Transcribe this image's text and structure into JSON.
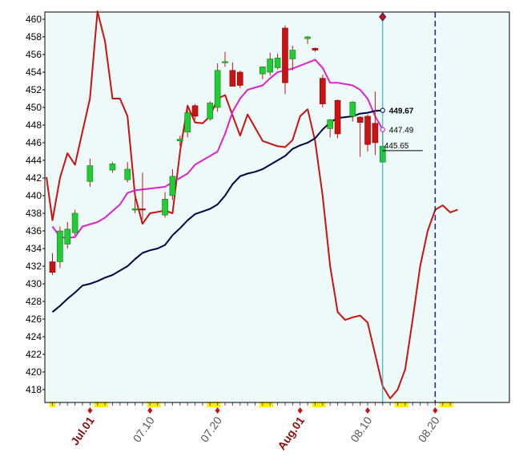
{
  "colors": {
    "plot_bg": "#eefafa",
    "up": "#22cc33",
    "down": "#cc1111",
    "oscillator": "#cc1111",
    "ma_short": "#dd22cc",
    "ma_long": "#000044",
    "cursor": "#1aa7b8",
    "future_line": "#1a2080",
    "marker_yellow": "#ffee00"
  },
  "chart_data": {
    "type": "candlestick",
    "ylim": [
      417,
      461
    ],
    "y_ticks": [
      418,
      420,
      422,
      424,
      426,
      428,
      430,
      432,
      434,
      436,
      438,
      440,
      442,
      444,
      446,
      448,
      450,
      452,
      454,
      456,
      458,
      460
    ],
    "x_ticks": [
      {
        "label": "Jul.01",
        "index": 5,
        "style": "month"
      },
      {
        "label": "07.10",
        "index": 13,
        "style": "day"
      },
      {
        "label": "07.20",
        "index": 22,
        "style": "day"
      },
      {
        "label": "Aug.01",
        "index": 33,
        "style": "month"
      },
      {
        "label": "08.10",
        "index": 42,
        "style": "day"
      },
      {
        "label": "08.20",
        "index": 51,
        "style": "day"
      }
    ],
    "n_slots": 53,
    "candles": [
      {
        "i": 0,
        "o": 432.5,
        "h": 433.5,
        "l": 431.0,
        "c": 431.3
      },
      {
        "i": 1,
        "o": 432.5,
        "h": 436.5,
        "l": 431.8,
        "c": 436.0
      },
      {
        "i": 2,
        "o": 434.5,
        "h": 437.0,
        "l": 434.0,
        "c": 436.2
      },
      {
        "i": 3,
        "o": 435.8,
        "h": 438.4,
        "l": 435.5,
        "c": 438.0
      },
      {
        "i": 5,
        "o": 441.6,
        "h": 444.2,
        "l": 441.0,
        "c": 443.4
      },
      {
        "i": 8,
        "o": 442.9,
        "h": 443.8,
        "l": 442.6,
        "c": 443.6
      },
      {
        "i": 10,
        "o": 441.8,
        "h": 443.8,
        "l": 441.5,
        "c": 443.0
      },
      {
        "i": 11,
        "o": 438.5,
        "h": 439.7,
        "l": 438.0,
        "c": 438.5
      },
      {
        "i": 12,
        "o": 438.5,
        "h": 442.6,
        "l": 437.3,
        "c": 438.4
      },
      {
        "i": 15,
        "o": 437.8,
        "h": 440.4,
        "l": 437.5,
        "c": 439.6
      },
      {
        "i": 16,
        "o": 440.0,
        "h": 443.0,
        "l": 439.5,
        "c": 442.2
      },
      {
        "i": 17,
        "o": 446.2,
        "h": 446.8,
        "l": 445.6,
        "c": 446.4
      },
      {
        "i": 18,
        "o": 447.2,
        "h": 450.2,
        "l": 446.6,
        "c": 449.4
      },
      {
        "i": 19,
        "o": 450.2,
        "h": 450.4,
        "l": 448.6,
        "c": 449.0
      },
      {
        "i": 21,
        "o": 448.7,
        "h": 450.7,
        "l": 448.5,
        "c": 450.5
      },
      {
        "i": 22,
        "o": 450.0,
        "h": 455.0,
        "l": 449.5,
        "c": 454.2
      },
      {
        "i": 23,
        "o": 455.1,
        "h": 456.3,
        "l": 454.6,
        "c": 455.2
      },
      {
        "i": 24,
        "o": 454.2,
        "h": 455.1,
        "l": 452.4,
        "c": 452.4
      },
      {
        "i": 25,
        "o": 454.0,
        "h": 454.2,
        "l": 452.2,
        "c": 452.5
      },
      {
        "i": 28,
        "o": 453.8,
        "h": 454.5,
        "l": 453.2,
        "c": 454.6
      },
      {
        "i": 29,
        "o": 454.0,
        "h": 456.2,
        "l": 453.6,
        "c": 455.5
      },
      {
        "i": 30,
        "o": 454.5,
        "h": 456.1,
        "l": 454.3,
        "c": 455.6
      },
      {
        "i": 31,
        "o": 459.0,
        "h": 459.3,
        "l": 451.5,
        "c": 452.8
      },
      {
        "i": 32,
        "o": 455.5,
        "h": 457.0,
        "l": 454.2,
        "c": 456.5
      },
      {
        "i": 34,
        "o": 457.8,
        "h": 458.1,
        "l": 457.2,
        "c": 458.0
      },
      {
        "i": 35,
        "o": 456.7,
        "h": 456.8,
        "l": 456.3,
        "c": 456.5
      },
      {
        "i": 36,
        "o": 453.3,
        "h": 453.7,
        "l": 450.0,
        "c": 450.4
      },
      {
        "i": 37,
        "o": 447.6,
        "h": 448.7,
        "l": 446.6,
        "c": 448.6
      },
      {
        "i": 38,
        "o": 450.8,
        "h": 450.9,
        "l": 446.5,
        "c": 447.0
      },
      {
        "i": 40,
        "o": 449.0,
        "h": 450.7,
        "l": 448.4,
        "c": 450.6
      },
      {
        "i": 41,
        "o": 448.9,
        "h": 449.0,
        "l": 444.4,
        "c": 448.3
      },
      {
        "i": 42,
        "o": 449.0,
        "h": 449.2,
        "l": 445.0,
        "c": 445.8
      },
      {
        "i": 43,
        "o": 448.2,
        "h": 451.8,
        "l": 444.6,
        "c": 446.0
      },
      {
        "i": 44,
        "o": 443.8,
        "h": 447.6,
        "l": 443.7,
        "c": 445.6
      }
    ],
    "series": [
      {
        "key": "oscillator",
        "points": [
          [
            -0.8,
            442.1
          ],
          [
            0,
            437.2
          ],
          [
            1,
            442.0
          ],
          [
            2,
            444.8
          ],
          [
            3,
            443.5
          ],
          [
            5,
            451.0
          ],
          [
            6,
            460.9
          ],
          [
            7,
            457.5
          ],
          [
            8,
            451.0
          ],
          [
            9,
            451.0
          ],
          [
            10,
            449.0
          ],
          [
            11,
            440.0
          ],
          [
            12,
            436.8
          ],
          [
            13,
            438.0
          ],
          [
            15,
            438.3
          ],
          [
            16,
            438.0
          ],
          [
            17,
            445.0
          ],
          [
            18,
            450.2
          ],
          [
            19,
            448.3
          ],
          [
            20,
            448.2
          ],
          [
            21,
            449.0
          ],
          [
            22,
            451.0
          ],
          [
            23,
            451.4
          ],
          [
            25,
            446.8
          ],
          [
            26,
            449.2
          ],
          [
            28,
            446.2
          ],
          [
            30,
            445.6
          ],
          [
            31,
            445.5
          ],
          [
            32,
            446.3
          ],
          [
            33,
            449.0
          ],
          [
            34,
            449.8
          ],
          [
            35,
            446.2
          ],
          [
            36,
            440.0
          ],
          [
            37,
            432.0
          ],
          [
            38,
            426.8
          ],
          [
            39,
            425.9
          ],
          [
            40,
            426.2
          ],
          [
            41,
            426.4
          ],
          [
            42,
            425.6
          ],
          [
            43,
            422.0
          ],
          [
            44,
            418.4
          ],
          [
            45,
            417.0
          ],
          [
            46,
            418.0
          ],
          [
            47,
            420.3
          ],
          [
            48,
            426.0
          ],
          [
            49,
            432.0
          ],
          [
            50,
            436.0
          ],
          [
            51,
            438.4
          ],
          [
            52,
            438.9
          ],
          [
            53,
            438.1
          ],
          [
            54,
            438.4
          ]
        ]
      },
      {
        "key": "ma_short",
        "points": [
          [
            0,
            436.5
          ],
          [
            1,
            435.3
          ],
          [
            2,
            435.2
          ],
          [
            3,
            435.3
          ],
          [
            4,
            436.5
          ],
          [
            6,
            437.0
          ],
          [
            7,
            437.5
          ],
          [
            9,
            439.0
          ],
          [
            10,
            440.3
          ],
          [
            11,
            440.6
          ],
          [
            14,
            440.9
          ],
          [
            15,
            441.0
          ],
          [
            16,
            441.5
          ],
          [
            17,
            442.0
          ],
          [
            18,
            442.5
          ],
          [
            19,
            443.5
          ],
          [
            20,
            444.0
          ],
          [
            21,
            444.5
          ],
          [
            22,
            445.0
          ],
          [
            23,
            447.0
          ],
          [
            24,
            449.5
          ],
          [
            25,
            451.0
          ],
          [
            26,
            452.0
          ],
          [
            28,
            452.5
          ],
          [
            29,
            453.3
          ],
          [
            30,
            454.0
          ],
          [
            31,
            454.2
          ],
          [
            32,
            454.4
          ],
          [
            35,
            455.4
          ],
          [
            36,
            454.5
          ],
          [
            37,
            452.8
          ],
          [
            38,
            452.8
          ],
          [
            40,
            452.5
          ],
          [
            41,
            452.0
          ],
          [
            42,
            451.0
          ],
          [
            43,
            449.0
          ],
          [
            44,
            447.5
          ]
        ]
      },
      {
        "key": "ma_long",
        "points": [
          [
            0,
            426.8
          ],
          [
            1,
            427.5
          ],
          [
            2,
            428.3
          ],
          [
            3,
            429.0
          ],
          [
            4,
            429.8
          ],
          [
            5,
            430.0
          ],
          [
            6,
            430.3
          ],
          [
            7,
            430.7
          ],
          [
            8,
            431.0
          ],
          [
            9,
            431.5
          ],
          [
            10,
            432.0
          ],
          [
            11,
            432.8
          ],
          [
            12,
            433.5
          ],
          [
            13,
            433.8
          ],
          [
            14,
            434.0
          ],
          [
            15,
            434.4
          ],
          [
            16,
            435.5
          ],
          [
            17,
            436.3
          ],
          [
            18,
            437.2
          ],
          [
            19,
            437.9
          ],
          [
            20,
            438.2
          ],
          [
            21,
            438.5
          ],
          [
            22,
            439.0
          ],
          [
            23,
            440.0
          ],
          [
            24,
            441.3
          ],
          [
            25,
            442.2
          ],
          [
            26,
            442.5
          ],
          [
            27,
            442.7
          ],
          [
            28,
            443.0
          ],
          [
            29,
            443.5
          ],
          [
            30,
            444.0
          ],
          [
            31,
            444.5
          ],
          [
            32,
            445.3
          ],
          [
            33,
            445.7
          ],
          [
            34,
            446.0
          ],
          [
            35,
            446.5
          ],
          [
            36,
            447.5
          ],
          [
            37,
            448.3
          ],
          [
            38,
            448.8
          ],
          [
            39,
            448.9
          ],
          [
            40,
            449.0
          ],
          [
            41,
            449.3
          ],
          [
            42,
            449.4
          ],
          [
            43,
            449.6
          ],
          [
            44,
            449.67
          ]
        ]
      }
    ],
    "value_labels": [
      {
        "text": "449.67",
        "y": 449.67,
        "bold": true
      },
      {
        "text": "447.49",
        "y": 447.49,
        "bold": false
      },
      {
        "text": "445.65",
        "y": 445.65,
        "bold": false
      }
    ],
    "cursor_index": 44,
    "future_index": 51
  }
}
